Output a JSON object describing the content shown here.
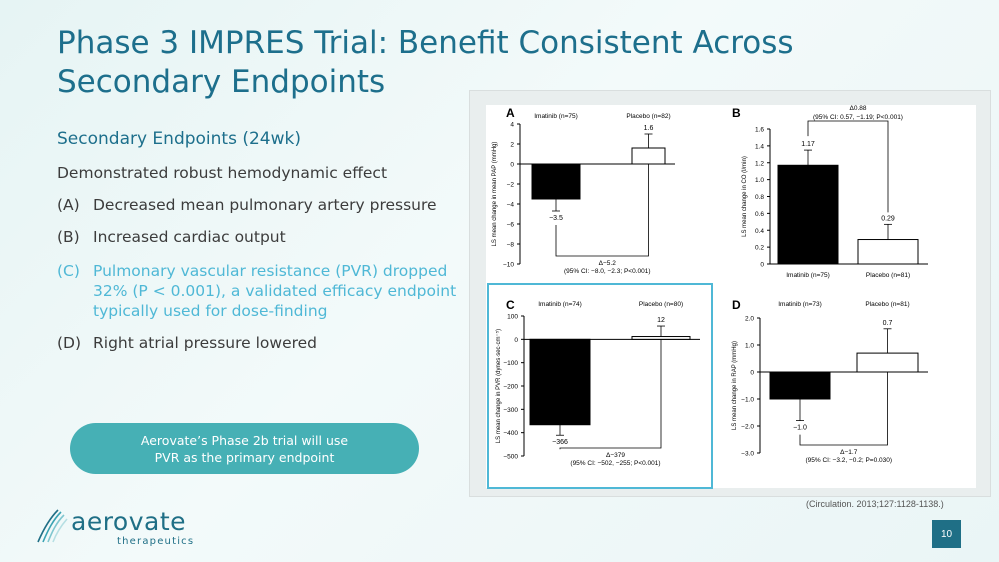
{
  "slide": {
    "title": "Phase 3 IMPRES Trial: Benefit Consistent Across Secondary Endpoints",
    "subtitle": "Secondary Endpoints (24wk)",
    "intro": "Demonstrated robust hemodynamic effect",
    "items": [
      {
        "letter": "(A)",
        "text": "Decreased mean pulmonary artery pressure"
      },
      {
        "letter": "(B)",
        "text": "Increased cardiac output"
      },
      {
        "letter": "(C)",
        "text": "Pulmonary vascular resistance (PVR) dropped 32% (P < 0.001), a validated efficacy endpoint typically used for dose-finding"
      },
      {
        "letter": "(D)",
        "text": "Right atrial pressure lowered"
      }
    ],
    "callout": "Aerovate’s Phase 2b trial will use PVR as the primary endpoint",
    "citation": "(Circulation. 2013;127:1128-1138.)",
    "page_number": "10",
    "logo": {
      "name": "aerovate",
      "tagline": "therapeutics"
    },
    "colors": {
      "title": "#1d6f8c",
      "highlight": "#4fb8d6",
      "callout_bg": "#46b0b5",
      "imatinib_bar": "#000000",
      "placebo_bar": "#ffffff"
    }
  },
  "chart_data": [
    {
      "type": "bar",
      "panel": "A",
      "categories": [
        "Imatinib (n=75)",
        "Placebo (n=82)"
      ],
      "values": [
        -3.5,
        1.6
      ],
      "error": [
        1.2,
        1.4
      ],
      "value_labels": [
        "−3.5",
        "1.6"
      ],
      "ylabel": "LS mean change in mean PAP (mmHg)",
      "ylim": [
        -10,
        4
      ],
      "yticks": [
        4,
        2,
        0,
        -2,
        -4,
        -6,
        -8,
        -10
      ],
      "bracket": [
        "Δ−5.2",
        "(95% CI: −8.0, −2.3; P<0.001)"
      ],
      "category_position": "top"
    },
    {
      "type": "bar",
      "panel": "B",
      "categories": [
        "Imatinib (n=75)",
        "Placebo (n=81)"
      ],
      "values": [
        1.17,
        0.29
      ],
      "error": [
        0.18,
        0.18
      ],
      "value_labels": [
        "1.17",
        "0.29"
      ],
      "ylabel": "LS mean change in CO (l/min)",
      "ylim": [
        0,
        1.6
      ],
      "yticks": [
        1.6,
        1.4,
        1.2,
        1.0,
        0.8,
        0.6,
        0.4,
        0.2,
        0
      ],
      "bracket": [
        "Δ0.88",
        "(95% CI: 0.57, −1.19; P<0.001)"
      ],
      "category_position": "bottom"
    },
    {
      "type": "bar",
      "panel": "C",
      "categories": [
        "Imatinib (n=74)",
        "Placebo (n=80)"
      ],
      "values": [
        -366,
        12
      ],
      "error": [
        45,
        45
      ],
      "value_labels": [
        "−366",
        "12"
      ],
      "ylabel": "LS mean change in PVR (dynes·sec·cm⁻⁵)",
      "ylim": [
        -500,
        100
      ],
      "yticks": [
        100,
        0,
        -100,
        -200,
        -300,
        -400,
        -500
      ],
      "bracket": [
        "Δ−379",
        "(95% CI: −502, −255; P<0.001)"
      ],
      "category_position": "top"
    },
    {
      "type": "bar",
      "panel": "D",
      "categories": [
        "Imatinib (n=73)",
        "Placebo (n=81)"
      ],
      "values": [
        -1.0,
        0.7
      ],
      "error": [
        0.8,
        0.9
      ],
      "value_labels": [
        "−1.0",
        "0.7"
      ],
      "ylabel": "LS mean change in RAP (mmHg)",
      "ylim": [
        -3.0,
        2.0
      ],
      "yticks": [
        2.0,
        1.0,
        0,
        -1.0,
        -2.0,
        -3.0
      ],
      "bracket": [
        "Δ−1.7",
        "(95% CI: −3.2, −0.2; P=0.030)"
      ],
      "category_position": "top"
    }
  ]
}
